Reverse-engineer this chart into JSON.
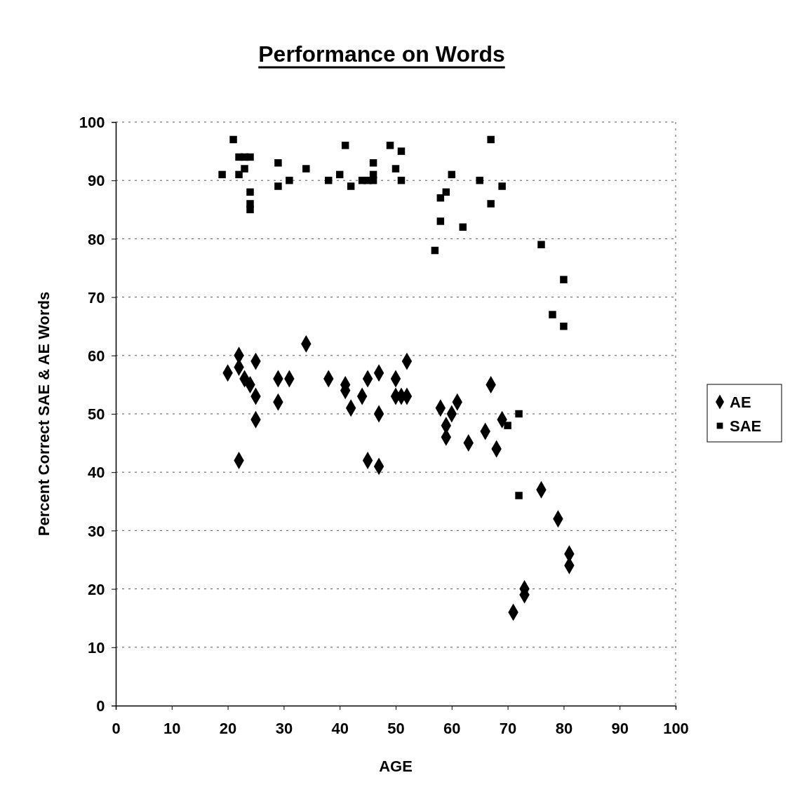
{
  "chart_data": {
    "type": "scatter",
    "title": "Performance on Words",
    "xlabel": "AGE",
    "ylabel": "Percent Correct SAE & AE Words",
    "xlim": [
      0,
      100
    ],
    "xticks": [
      0,
      10,
      20,
      30,
      40,
      50,
      60,
      70,
      80,
      90,
      100
    ],
    "ylim": [
      0,
      100
    ],
    "yticks": [
      0,
      10,
      20,
      30,
      40,
      50,
      60,
      70,
      80,
      90,
      100
    ],
    "grid": "y",
    "legend": "right",
    "series": [
      {
        "name": "AE",
        "color": "#000000",
        "marker": "diamond",
        "x": [
          20,
          22,
          22,
          23,
          24,
          25,
          25,
          25,
          22,
          29,
          29,
          31,
          34,
          38,
          41,
          41,
          42,
          44,
          45,
          45,
          47,
          47,
          47,
          50,
          50,
          51,
          52,
          52,
          58,
          61,
          60,
          59,
          59,
          63,
          66,
          68,
          67,
          69,
          76,
          79,
          81,
          81,
          73,
          73,
          71
        ],
        "values": [
          57,
          60,
          58,
          56,
          55,
          59,
          53,
          49,
          42,
          56,
          52,
          56,
          62,
          56,
          54,
          55,
          51,
          53,
          56,
          42,
          57,
          50,
          41,
          56,
          53,
          53,
          59,
          53,
          51,
          52,
          50,
          48,
          46,
          45,
          47,
          44,
          55,
          49,
          37,
          32,
          26,
          24,
          20,
          19,
          16
        ]
      },
      {
        "name": "SAE",
        "color": "#000000",
        "marker": "square",
        "x": [
          19,
          21,
          22,
          22,
          23,
          23,
          24,
          24,
          24,
          24,
          29,
          29,
          31,
          34,
          38,
          40,
          41,
          42,
          44,
          45,
          46,
          46,
          46,
          49,
          50,
          51,
          51,
          57,
          58,
          58,
          59,
          60,
          62,
          65,
          67,
          67,
          69,
          70,
          72,
          72,
          76,
          78,
          80,
          80
        ],
        "values": [
          91,
          97,
          94,
          91,
          94,
          92,
          94,
          88,
          86,
          85,
          93,
          89,
          90,
          92,
          90,
          91,
          96,
          89,
          90,
          90,
          93,
          91,
          90,
          96,
          92,
          95,
          90,
          78,
          87,
          83,
          88,
          91,
          82,
          90,
          97,
          86,
          89,
          48,
          50,
          36,
          79,
          67,
          73,
          65
        ]
      }
    ]
  }
}
